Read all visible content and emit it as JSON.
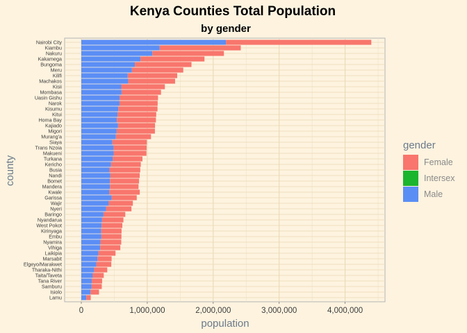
{
  "chart_data": {
    "type": "bar",
    "orientation": "horizontal",
    "stacked": true,
    "title": "Kenya Counties Total Population",
    "subtitle": "by gender",
    "xlabel": "population",
    "ylabel": "county",
    "xlim": [
      0,
      4600000
    ],
    "x_ticks": [
      0,
      1000000,
      2000000,
      3000000,
      4000000
    ],
    "x_tick_labels": [
      "0",
      "1,000,000",
      "2,000,000",
      "3,000,000",
      "4,000,000"
    ],
    "grid": true,
    "legend": {
      "title": "gender",
      "placement": "right",
      "entries": [
        {
          "label": "Female",
          "color": "#f8766d"
        },
        {
          "label": "Intersex",
          "color": "#1cb52e"
        },
        {
          "label": "Male",
          "color": "#5b8ef5"
        }
      ]
    },
    "categories": [
      "Nairobi City",
      "Kiambu",
      "Nakuru",
      "Kakamega",
      "Bungoma",
      "Meru",
      "Kilifi",
      "Machakos",
      "Kisii",
      "Mombasa",
      "Uasin Gishu",
      "Narok",
      "Kisumu",
      "Kitui",
      "Homa Bay",
      "Kajiado",
      "Migori",
      "Murang'a",
      "Siaya",
      "Trans Nzoia",
      "Makueni",
      "Turkana",
      "Kericho",
      "Busia",
      "Nandi",
      "Bomet",
      "Mandera",
      "Kwale",
      "Garissa",
      "Wajir",
      "Nyeri",
      "Baringo",
      "Nyandarua",
      "West Pokot",
      "Kirinyaga",
      "Embu",
      "Nyamira",
      "Vihiga",
      "Laikipia",
      "Marsabit",
      "Elgeyo/Marakwet",
      "Tharaka-Nithi",
      "Taita/Taveta",
      "Tana River",
      "Samburu",
      "Isiolo",
      "Lamu"
    ],
    "series": [
      {
        "name": "Male",
        "values": [
          2192452,
          1187146,
          1077272,
          897133,
          812146,
          767698,
          704089,
          710707,
          605784,
          610257,
          580269,
          579042,
          560942,
          549003,
          539560,
          557098,
          536187,
          523940,
          471669,
          489107,
          489691,
          478087,
          450741,
          426252,
          441259,
          434287,
          434976,
          425121,
          458975,
          415374,
          374288,
          336322,
          315022,
          307013,
          302011,
          304208,
          290907,
          285966,
          259440,
          243548,
          227317,
          194042,
          173337,
          158550,
          156774,
          139510,
          76103
        ]
      },
      {
        "name": "Intersex",
        "values": [
          245,
          135,
          95,
          40,
          36,
          47,
          25,
          41,
          28,
          32,
          25,
          13,
          44,
          38,
          16,
          29,
          10,
          36,
          22,
          25,
          20,
          28,
          20,
          25,
          27,
          20,
          62,
          20,
          38,
          10,
          30,
          24,
          10,
          22,
          9,
          23,
          23,
          3,
          19,
          5,
          21,
          8,
          10,
          8,
          15,
          16,
          6
        ]
      },
      {
        "name": "Female",
        "values": [
          2204376,
          1230604,
          1084835,
          970406,
          858286,
          777975,
          749703,
          711191,
          661121,
          598046,
          582574,
          578583,
          594447,
          587031,
          591878,
          560704,
          579983,
          532669,
          521496,
          501208,
          498015,
          448868,
          451008,
          467401,
          444100,
          441147,
          432444,
          461117,
          381478,
          366117,
          385866,
          330428,
          323289,
          314999,
          308369,
          304208,
          314531,
          305776,
          259102,
          216219,
          227151,
          199148,
          166773,
          157049,
          153638,
          128483,
          67087
        ]
      }
    ]
  }
}
